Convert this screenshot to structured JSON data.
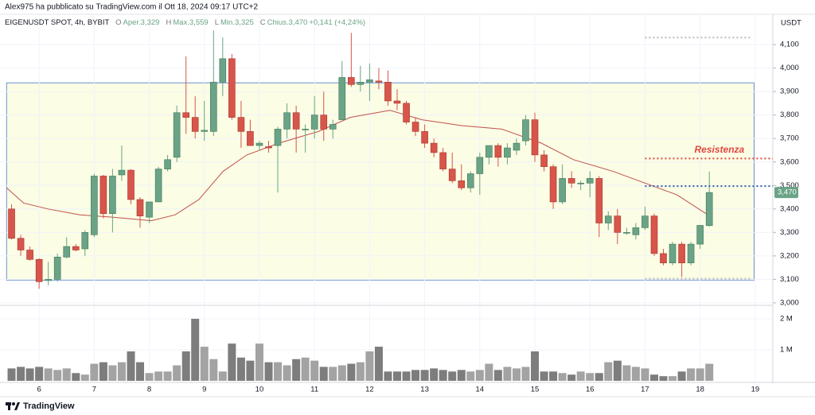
{
  "chart_data": {
    "type": "candlestick",
    "byline": "Alex975 ha pubblicato su TradingView.com il Ott 18, 2024 09:17 UTC+2",
    "title": "EIGENUSDT SPOT, 4h, BYBIT",
    "legend": [
      "O",
      "Aper.3,329",
      "H",
      "Max.3,559",
      "L",
      "Min.3,325",
      "C",
      "Chius.3,470",
      "+0,141 (+4,24%)"
    ],
    "currency": "USDT",
    "footer": "TradingView",
    "x": [
      5.5,
      5.667,
      5.833,
      6,
      6.167,
      6.333,
      6.5,
      6.667,
      6.833,
      7,
      7.167,
      7.333,
      7.5,
      7.667,
      7.833,
      8,
      8.167,
      8.333,
      8.5,
      8.667,
      8.833,
      9,
      9.167,
      9.333,
      9.5,
      9.667,
      9.833,
      10,
      10.167,
      10.333,
      10.5,
      10.667,
      10.833,
      11,
      11.167,
      11.333,
      11.5,
      11.667,
      11.833,
      12,
      12.167,
      12.333,
      12.5,
      12.667,
      12.833,
      13,
      13.167,
      13.333,
      13.5,
      13.667,
      13.833,
      14,
      14.167,
      14.333,
      14.5,
      14.667,
      14.833,
      15,
      15.167,
      15.333,
      15.5,
      15.667,
      15.833,
      16,
      16.167,
      16.333,
      16.5,
      16.667,
      16.833,
      17,
      17.167,
      17.333,
      17.5,
      17.667,
      17.833,
      18,
      18.167
    ],
    "open": [
      3400,
      3275,
      3225,
      3185,
      3095,
      3100,
      3195,
      3240,
      3230,
      3290,
      3540,
      3380,
      3545,
      3565,
      3440,
      3365,
      3430,
      3570,
      3620,
      3810,
      3790,
      3730,
      3730,
      3940,
      4040,
      3790,
      3730,
      3670,
      3665,
      3670,
      3740,
      3810,
      3740,
      3740,
      3800,
      3740,
      3780,
      3960,
      3930,
      3940,
      3945,
      3940,
      3860,
      3850,
      3770,
      3730,
      3680,
      3640,
      3570,
      3520,
      3490,
      3550,
      3620,
      3670,
      3620,
      3650,
      3690,
      3780,
      3630,
      3580,
      3430,
      3530,
      3510,
      3510,
      3530,
      3340,
      3370,
      3300,
      3290,
      3320,
      3370,
      3210,
      3170,
      3250,
      3170,
      3250,
      3329
    ],
    "high": [
      3420,
      3290,
      3240,
      3190,
      3175,
      3210,
      3280,
      3250,
      3310,
      3550,
      3545,
      3570,
      3670,
      3570,
      3450,
      3430,
      3580,
      3630,
      3840,
      4050,
      3880,
      3860,
      4160,
      4130,
      4060,
      3860,
      3780,
      3690,
      3690,
      3750,
      3850,
      3840,
      3760,
      3880,
      3900,
      3780,
      4030,
      4150,
      4010,
      4020,
      4000,
      3990,
      3910,
      3860,
      3790,
      3760,
      3700,
      3660,
      3640,
      3590,
      3560,
      3640,
      3670,
      3680,
      3680,
      3700,
      3800,
      3810,
      3650,
      3590,
      3590,
      3560,
      3520,
      3560,
      3540,
      3390,
      3400,
      3320,
      3340,
      3410,
      3380,
      3230,
      3260,
      3260,
      3260,
      3330,
      3559
    ],
    "low": [
      3270,
      3200,
      3180,
      3060,
      3075,
      3090,
      3190,
      3220,
      3200,
      3280,
      3360,
      3300,
      3520,
      3420,
      3320,
      3340,
      3430,
      3560,
      3600,
      3720,
      3700,
      3690,
      3710,
      3880,
      3780,
      3660,
      3670,
      3650,
      3640,
      3470,
      3700,
      3640,
      3640,
      3700,
      3690,
      3700,
      3780,
      3920,
      3900,
      3860,
      3910,
      3840,
      3820,
      3760,
      3710,
      3660,
      3620,
      3560,
      3510,
      3480,
      3470,
      3460,
      3590,
      3580,
      3590,
      3630,
      3670,
      3600,
      3560,
      3400,
      3420,
      3490,
      3480,
      3450,
      3280,
      3310,
      3250,
      3290,
      3270,
      3310,
      3200,
      3160,
      3160,
      3110,
      3160,
      3230,
      3325
    ],
    "close": [
      3275,
      3225,
      3185,
      3090,
      3100,
      3195,
      3240,
      3225,
      3300,
      3540,
      3380,
      3540,
      3565,
      3440,
      3370,
      3430,
      3570,
      3610,
      3810,
      3790,
      3730,
      3735,
      3940,
      4040,
      3790,
      3730,
      3670,
      3680,
      3660,
      3740,
      3810,
      3740,
      3740,
      3800,
      3740,
      3760,
      3960,
      3930,
      3940,
      3950,
      3940,
      3860,
      3850,
      3770,
      3730,
      3680,
      3640,
      3570,
      3520,
      3490,
      3550,
      3620,
      3670,
      3620,
      3660,
      3680,
      3780,
      3630,
      3580,
      3430,
      3530,
      3510,
      3510,
      3530,
      3340,
      3370,
      3300,
      3300,
      3320,
      3370,
      3210,
      3170,
      3250,
      3170,
      3250,
      3330,
      3470
    ],
    "volume": [
      400000,
      450000,
      400000,
      450000,
      400000,
      350000,
      400000,
      250000,
      200000,
      550000,
      600000,
      500000,
      600000,
      950000,
      600000,
      250000,
      300000,
      300000,
      500000,
      950000,
      2000000,
      1100000,
      700000,
      300000,
      1200000,
      750000,
      650000,
      1200000,
      600000,
      600000,
      500000,
      700000,
      750000,
      650000,
      450000,
      450000,
      500000,
      550000,
      600000,
      950000,
      1100000,
      300000,
      300000,
      300000,
      350000,
      350000,
      400000,
      350000,
      300000,
      350000,
      300000,
      350000,
      550000,
      350000,
      450000,
      400000,
      450000,
      950000,
      300000,
      300000,
      250000,
      200000,
      300000,
      250000,
      250000,
      600000,
      650000,
      500000,
      450000,
      400000,
      200000,
      150000,
      150000,
      300000,
      400000,
      400000,
      550000
    ],
    "up_color": "#6aa386",
    "down_color": "#d7554a",
    "volume_up_color": "#a3a3a3",
    "volume_down_color": "#7d7d7d",
    "ma": {
      "color": "#c0504d",
      "x": [
        5.41,
        5.72,
        6.16,
        6.74,
        7.32,
        8.04,
        8.47,
        8.9,
        9.34,
        9.77,
        10.35,
        11.07,
        11.65,
        12.37,
        12.95,
        13.67,
        14.4,
        15.12,
        15.7,
        16.42,
        17.0,
        17.58,
        18.14
      ],
      "values": [
        3490,
        3425,
        3400,
        3375,
        3365,
        3350,
        3375,
        3440,
        3560,
        3630,
        3680,
        3730,
        3790,
        3820,
        3780,
        3755,
        3740,
        3680,
        3610,
        3560,
        3510,
        3460,
        3375
      ]
    },
    "range_box": {
      "x": [
        5.41,
        18.98
      ],
      "y": [
        3097,
        3937
      ],
      "color": "#6b8fd6",
      "fill": "#fbfde4"
    },
    "levels": [
      {
        "value": 4130,
        "x": [
          17,
          18.95
        ],
        "color": "#bbbbbb"
      },
      {
        "value": 3615,
        "x": [
          17,
          19.32
        ],
        "color": "#e0473f"
      },
      {
        "value": 3497,
        "x": [
          17,
          19.32
        ],
        "color": "#2c5fa8"
      },
      {
        "value": 3103,
        "x": [
          17,
          18.95
        ],
        "color": "#bbbbbb"
      }
    ],
    "annotation": {
      "text": "Resistenza",
      "x": 18.35,
      "y": 3650,
      "color": "#e0473f"
    },
    "last_price": {
      "value": 3470,
      "label": "3,470"
    },
    "xlim": [
      5.29,
      19.32
    ],
    "xticks": [
      6,
      7,
      8,
      9,
      10,
      11,
      12,
      13,
      14,
      15,
      16,
      17,
      18,
      19
    ],
    "ylim": [
      2993,
      4229
    ],
    "yticks": [
      {
        "value": 3000,
        "label": "3,000"
      },
      {
        "value": 3100,
        "label": "3,100"
      },
      {
        "value": 3200,
        "label": "3,200"
      },
      {
        "value": 3300,
        "label": "3,300"
      },
      {
        "value": 3400,
        "label": "3,400"
      },
      {
        "value": 3500,
        "label": "3,500"
      },
      {
        "value": 3600,
        "label": "3,600"
      },
      {
        "value": 3700,
        "label": "3,700"
      },
      {
        "value": 3800,
        "label": "3,800"
      },
      {
        "value": 3900,
        "label": "3,900"
      },
      {
        "value": 4000,
        "label": "4,000"
      },
      {
        "value": 4100,
        "label": "4,100"
      }
    ],
    "vlim": [
      0,
      2410000
    ],
    "vticks": [
      {
        "value": 1000000,
        "label": "1 M"
      },
      {
        "value": 2000000,
        "label": "2 M"
      }
    ],
    "grid": true
  }
}
